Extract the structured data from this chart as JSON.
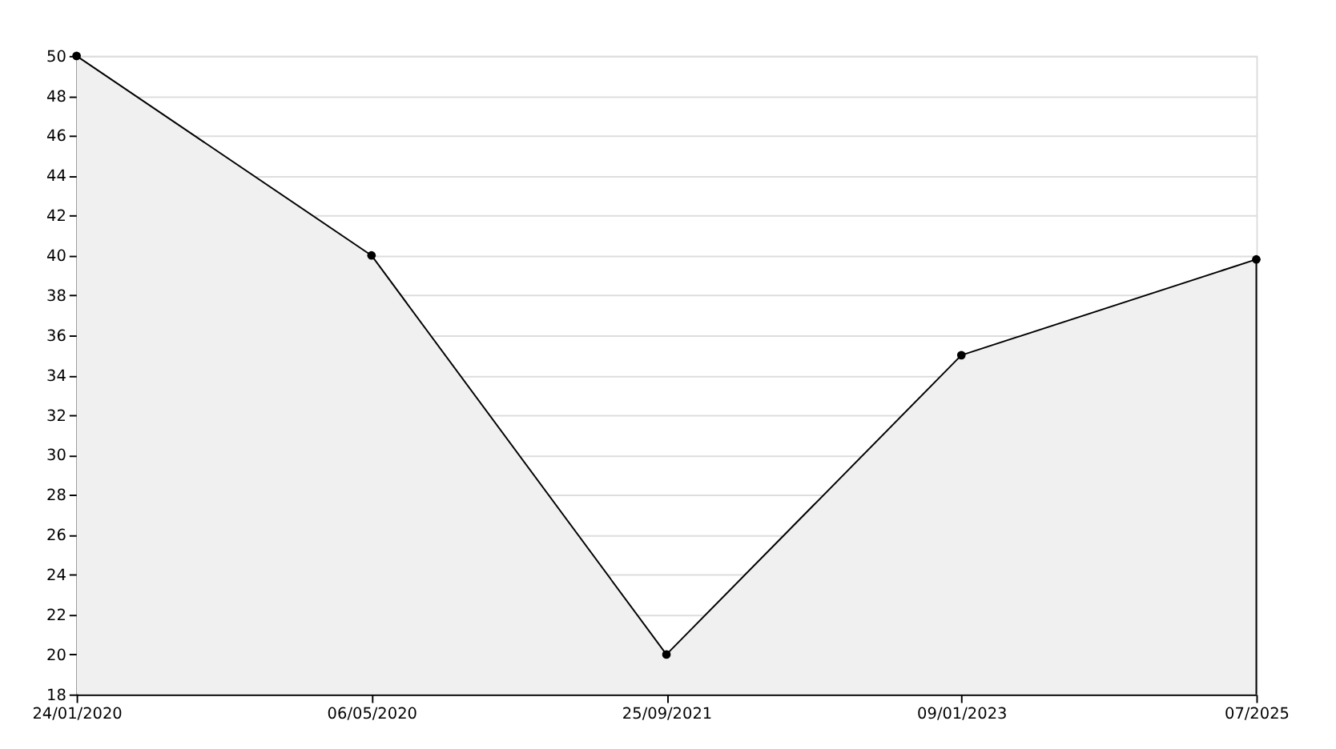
{
  "chart_data": {
    "type": "area",
    "categories": [
      "24/01/2020",
      "06/05/2020",
      "25/09/2021",
      "09/01/2023",
      "07/2025"
    ],
    "series": [
      {
        "color": "#f0f0f0",
        "values": [
          50,
          40,
          20,
          35,
          39.8
        ]
      }
    ],
    "ylim": [
      18,
      50
    ],
    "yticks": [
      18,
      20,
      22,
      24,
      26,
      28,
      30,
      32,
      34,
      36,
      38,
      40,
      42,
      44,
      46,
      48,
      50
    ],
    "grid": "y",
    "marker": "circle",
    "line_style": "solid"
  }
}
